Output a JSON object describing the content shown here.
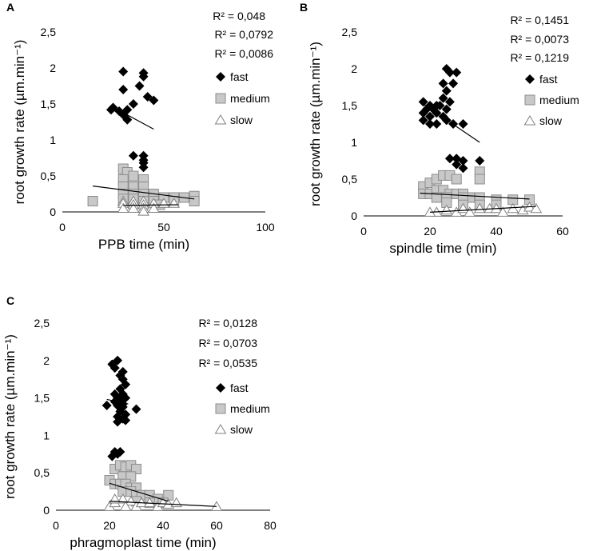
{
  "chart_data": [
    {
      "panel": "A",
      "type": "scatter",
      "xlabel": "PPB time (min)",
      "ylabel": "root growth rate (µm.min⁻¹)",
      "xlim": [
        0,
        100
      ],
      "ylim": [
        0,
        2.5
      ],
      "xticks": [
        "0",
        "50",
        "100"
      ],
      "yticks": [
        "0",
        "0,5",
        "1",
        "1,5",
        "2",
        "2,5"
      ],
      "r2": [
        "R² = 0,048",
        "R² = 0,0792",
        "R² = 0,0086"
      ],
      "legend": [
        "fast",
        "medium",
        "slow"
      ],
      "series": [
        {
          "name": "fast",
          "marker": "diamond",
          "points": [
            [
              30,
              1.95
            ],
            [
              40,
              1.93
            ],
            [
              40,
              1.88
            ],
            [
              30,
              1.7
            ],
            [
              38,
              1.75
            ],
            [
              35,
              1.5
            ],
            [
              32,
              1.42
            ],
            [
              42,
              1.6
            ],
            [
              45,
              1.55
            ],
            [
              25,
              1.45
            ],
            [
              24,
              1.42
            ],
            [
              28,
              1.4
            ],
            [
              30,
              1.35
            ],
            [
              32,
              1.28
            ],
            [
              40,
              0.78
            ],
            [
              35,
              0.78
            ],
            [
              40,
              0.72
            ],
            [
              40,
              0.68
            ],
            [
              40,
              0.62
            ]
          ],
          "trend": [
            [
              24,
              1.47
            ],
            [
              45,
              1.15
            ]
          ]
        },
        {
          "name": "medium",
          "marker": "square",
          "points": [
            [
              15,
              0.15
            ],
            [
              30,
              0.6
            ],
            [
              32,
              0.55
            ],
            [
              30,
              0.45
            ],
            [
              35,
              0.5
            ],
            [
              40,
              0.45
            ],
            [
              30,
              0.35
            ],
            [
              35,
              0.35
            ],
            [
              40,
              0.35
            ],
            [
              30,
              0.25
            ],
            [
              35,
              0.25
            ],
            [
              40,
              0.25
            ],
            [
              45,
              0.25
            ],
            [
              30,
              0.18
            ],
            [
              35,
              0.18
            ],
            [
              40,
              0.15
            ],
            [
              45,
              0.15
            ],
            [
              50,
              0.2
            ],
            [
              55,
              0.2
            ],
            [
              60,
              0.2
            ],
            [
              65,
              0.22
            ],
            [
              55,
              0.15
            ],
            [
              65,
              0.15
            ],
            [
              48,
              0.1
            ]
          ],
          "trend": [
            [
              15,
              0.36
            ],
            [
              65,
              0.18
            ]
          ]
        },
        {
          "name": "slow",
          "marker": "triangle",
          "points": [
            [
              30,
              0.15
            ],
            [
              35,
              0.15
            ],
            [
              40,
              0.15
            ],
            [
              30,
              0.12
            ],
            [
              35,
              0.1
            ],
            [
              40,
              0.1
            ],
            [
              45,
              0.12
            ],
            [
              50,
              0.12
            ],
            [
              55,
              0.12
            ],
            [
              30,
              0.05
            ],
            [
              35,
              0.05
            ],
            [
              40,
              0.05
            ],
            [
              45,
              0.05
            ],
            [
              40,
              0.01
            ]
          ],
          "trend": [
            [
              30,
              0.09
            ],
            [
              57,
              0.1
            ]
          ]
        }
      ]
    },
    {
      "panel": "B",
      "type": "scatter",
      "xlabel": "spindle time (min)",
      "ylabel": "root growth rate (µm.min⁻¹)",
      "xlim": [
        0,
        60
      ],
      "ylim": [
        0,
        2.5
      ],
      "xticks": [
        "0",
        "20",
        "40",
        "60"
      ],
      "yticks": [
        "0",
        "0,5",
        "1",
        "1,5",
        "2",
        "2,5"
      ],
      "r2": [
        "R² = 0,1451",
        "R² = 0,0073",
        "R² = 0,1219"
      ],
      "legend": [
        "fast",
        "medium",
        "slow"
      ],
      "series": [
        {
          "name": "fast",
          "marker": "diamond",
          "points": [
            [
              25,
              2.0
            ],
            [
              26,
              1.95
            ],
            [
              28,
              1.95
            ],
            [
              24,
              1.8
            ],
            [
              25,
              1.7
            ],
            [
              27,
              1.8
            ],
            [
              24,
              1.6
            ],
            [
              26,
              1.55
            ],
            [
              23,
              1.5
            ],
            [
              25,
              1.45
            ],
            [
              18,
              1.55
            ],
            [
              20,
              1.5
            ],
            [
              22,
              1.5
            ],
            [
              19,
              1.45
            ],
            [
              21,
              1.45
            ],
            [
              18,
              1.4
            ],
            [
              20,
              1.35
            ],
            [
              22,
              1.4
            ],
            [
              24,
              1.35
            ],
            [
              18,
              1.3
            ],
            [
              20,
              1.25
            ],
            [
              22,
              1.25
            ],
            [
              25,
              1.3
            ],
            [
              27,
              1.25
            ],
            [
              30,
              1.25
            ],
            [
              26,
              0.78
            ],
            [
              28,
              0.78
            ],
            [
              30,
              0.75
            ],
            [
              35,
              0.75
            ],
            [
              28,
              0.7
            ],
            [
              30,
              0.65
            ]
          ],
          "trend": [
            [
              17,
              1.55
            ],
            [
              35,
              1.0
            ]
          ]
        },
        {
          "name": "medium",
          "marker": "square",
          "points": [
            [
              18,
              0.4
            ],
            [
              20,
              0.45
            ],
            [
              22,
              0.5
            ],
            [
              24,
              0.55
            ],
            [
              26,
              0.55
            ],
            [
              28,
              0.5
            ],
            [
              35,
              0.6
            ],
            [
              35,
              0.5
            ],
            [
              18,
              0.3
            ],
            [
              20,
              0.3
            ],
            [
              22,
              0.35
            ],
            [
              24,
              0.35
            ],
            [
              26,
              0.3
            ],
            [
              28,
              0.3
            ],
            [
              30,
              0.3
            ],
            [
              32,
              0.25
            ],
            [
              22,
              0.25
            ],
            [
              25,
              0.25
            ],
            [
              30,
              0.25
            ],
            [
              35,
              0.25
            ],
            [
              40,
              0.22
            ],
            [
              45,
              0.22
            ],
            [
              50,
              0.22
            ],
            [
              25,
              0.18
            ],
            [
              30,
              0.15
            ],
            [
              35,
              0.15
            ],
            [
              40,
              0.15
            ]
          ],
          "trend": [
            [
              17,
              0.31
            ],
            [
              50,
              0.23
            ]
          ]
        },
        {
          "name": "slow",
          "marker": "triangle",
          "points": [
            [
              22,
              0.05
            ],
            [
              25,
              0.08
            ],
            [
              28,
              0.05
            ],
            [
              30,
              0.1
            ],
            [
              32,
              0.05
            ],
            [
              35,
              0.1
            ],
            [
              38,
              0.1
            ],
            [
              40,
              0.1
            ],
            [
              42,
              0.05
            ],
            [
              45,
              0.1
            ],
            [
              48,
              0.08
            ],
            [
              50,
              0.12
            ],
            [
              52,
              0.1
            ],
            [
              20,
              0.05
            ]
          ],
          "trend": [
            [
              20,
              0.05
            ],
            [
              52,
              0.13
            ]
          ]
        }
      ]
    },
    {
      "panel": "C",
      "type": "scatter",
      "xlabel": "phragmoplast time (min)",
      "ylabel": "root growth rate (µm.min⁻¹)",
      "xlim": [
        0,
        80
      ],
      "ylim": [
        0,
        2.5
      ],
      "xticks": [
        "0",
        "20",
        "40",
        "60",
        "80"
      ],
      "yticks": [
        "0",
        "0,5",
        "1",
        "1,5",
        "2",
        "2,5"
      ],
      "r2": [
        "R² = 0,0128",
        "R² = 0,0703",
        "R² = 0,0535"
      ],
      "legend": [
        "fast",
        "medium",
        "slow"
      ],
      "series": [
        {
          "name": "fast",
          "marker": "diamond",
          "points": [
            [
              21,
              1.95
            ],
            [
              23,
              2.0
            ],
            [
              22,
              1.9
            ],
            [
              25,
              1.85
            ],
            [
              24,
              1.8
            ],
            [
              25,
              1.75
            ],
            [
              26,
              1.68
            ],
            [
              24,
              1.62
            ],
            [
              22,
              1.55
            ],
            [
              25,
              1.55
            ],
            [
              23,
              1.5
            ],
            [
              24,
              1.48
            ],
            [
              26,
              1.5
            ],
            [
              22,
              1.45
            ],
            [
              25,
              1.42
            ],
            [
              23,
              1.4
            ],
            [
              19,
              1.4
            ],
            [
              25,
              1.38
            ],
            [
              30,
              1.35
            ],
            [
              24,
              1.32
            ],
            [
              26,
              1.28
            ],
            [
              23,
              1.25
            ],
            [
              25,
              1.22
            ],
            [
              26,
              1.2
            ],
            [
              23,
              1.18
            ],
            [
              22,
              0.78
            ],
            [
              24,
              0.78
            ],
            [
              21,
              0.72
            ],
            [
              23,
              0.75
            ]
          ],
          "trend": [
            [
              19,
              1.48
            ],
            [
              27,
              1.42
            ]
          ]
        },
        {
          "name": "medium",
          "marker": "square",
          "points": [
            [
              20,
              0.4
            ],
            [
              22,
              0.55
            ],
            [
              24,
              0.6
            ],
            [
              26,
              0.58
            ],
            [
              28,
              0.6
            ],
            [
              30,
              0.55
            ],
            [
              25,
              0.45
            ],
            [
              28,
              0.45
            ],
            [
              22,
              0.35
            ],
            [
              24,
              0.35
            ],
            [
              26,
              0.35
            ],
            [
              28,
              0.3
            ],
            [
              30,
              0.3
            ],
            [
              25,
              0.25
            ],
            [
              28,
              0.25
            ],
            [
              30,
              0.2
            ],
            [
              32,
              0.2
            ],
            [
              35,
              0.2
            ],
            [
              38,
              0.15
            ],
            [
              42,
              0.2
            ],
            [
              40,
              0.1
            ],
            [
              35,
              0.1
            ],
            [
              30,
              0.12
            ]
          ],
          "trend": [
            [
              20,
              0.36
            ],
            [
              42,
              0.12
            ]
          ]
        },
        {
          "name": "slow",
          "marker": "triangle",
          "points": [
            [
              20,
              0.05
            ],
            [
              22,
              0.1
            ],
            [
              25,
              0.15
            ],
            [
              28,
              0.12
            ],
            [
              30,
              0.05
            ],
            [
              32,
              0.1
            ],
            [
              35,
              0.1
            ],
            [
              38,
              0.05
            ],
            [
              40,
              0.1
            ],
            [
              42,
              0.08
            ],
            [
              45,
              0.1
            ],
            [
              60,
              0.05
            ],
            [
              22,
              0.15
            ],
            [
              26,
              0.05
            ]
          ],
          "trend": [
            [
              20,
              0.12
            ],
            [
              60,
              0.05
            ]
          ]
        }
      ]
    }
  ]
}
